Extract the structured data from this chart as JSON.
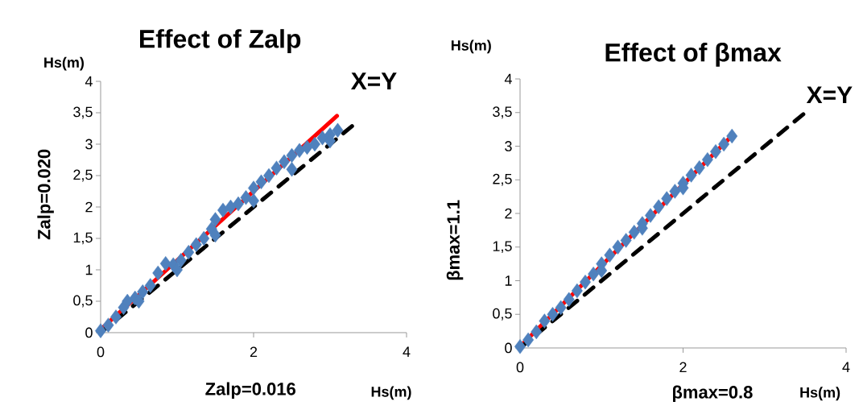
{
  "chart_data": [
    {
      "type": "scatter",
      "title": "Effect of Zalp",
      "xlabel": "Zalp=0.016",
      "ylabel": "Zalp=0.020",
      "annotations": [
        "Hs(m)",
        "Hs(m)",
        {
          "text": "X=Y",
          "x": 3.3,
          "y": 3.3
        }
      ],
      "xlim": [
        0,
        4
      ],
      "ylim": [
        0,
        4
      ],
      "xticks": [
        0,
        2,
        4
      ],
      "yticks": [
        0,
        {
          "value": 0.5,
          "label": "0,5"
        },
        1,
        {
          "value": 1.5,
          "label": "1,5"
        },
        2,
        {
          "value": 2.5,
          "label": "2,5"
        },
        3,
        {
          "value": 3.5,
          "label": "3,5"
        },
        4
      ],
      "grid": false,
      "legend": false,
      "series": [
        {
          "color": "#4f81bd",
          "marker": "diamond",
          "x": [
            0,
            0.1,
            0.2,
            0.3,
            0.35,
            0.45,
            0.5,
            0.55,
            0.65,
            0.75,
            0.85,
            0.95,
            1.0,
            1.05,
            1.15,
            1.25,
            1.35,
            1.45,
            1.5,
            1.5,
            1.6,
            1.7,
            1.8,
            1.9,
            2.0,
            2.0,
            2.1,
            2.2,
            2.3,
            2.4,
            2.5,
            2.5,
            2.6,
            2.7,
            2.8,
            2.9,
            3.0,
            3.0,
            3.1
          ],
          "values": [
            0.03,
            0.12,
            0.25,
            0.4,
            0.5,
            0.55,
            0.5,
            0.65,
            0.75,
            0.95,
            1.1,
            1.08,
            1.0,
            1.15,
            1.28,
            1.4,
            1.5,
            1.65,
            1.55,
            1.8,
            1.95,
            2.0,
            2.05,
            2.15,
            2.3,
            2.1,
            2.4,
            2.5,
            2.62,
            2.72,
            2.82,
            2.6,
            2.9,
            2.95,
            3.0,
            3.1,
            3.15,
            3.05,
            3.22
          ]
        },
        {
          "type": "line",
          "color": "#ff0000",
          "line_style": "solid",
          "x": [
            0,
            3.09
          ],
          "values": [
            0.05,
            3.45
          ]
        },
        {
          "type": "line",
          "color": "#000000",
          "line_style": "dashed",
          "x": [
            0,
            3.3
          ],
          "values": [
            0,
            3.3
          ]
        }
      ]
    },
    {
      "type": "scatter",
      "title": "Effect of βmax",
      "xlabel": "βmax=0.8",
      "ylabel": "βmax=1.1",
      "annotations": [
        "Hs(m)",
        "Hs(m)",
        {
          "text": "X=Y",
          "x": 3.5,
          "y": 3.5
        }
      ],
      "xlim": [
        0,
        4
      ],
      "ylim": [
        0,
        4
      ],
      "xticks": [
        0,
        2,
        4
      ],
      "yticks": [
        0,
        {
          "value": 0.5,
          "label": "0,5"
        },
        1,
        {
          "value": 1.5,
          "label": "1,5"
        },
        2,
        {
          "value": 2.5,
          "label": "2,5"
        },
        3,
        {
          "value": 3.5,
          "label": "3,5"
        },
        4
      ],
      "grid": false,
      "legend": false,
      "series": [
        {
          "color": "#4f81bd",
          "marker": "diamond",
          "x": [
            0,
            0.1,
            0.2,
            0.3,
            0.4,
            0.5,
            0.6,
            0.7,
            0.8,
            0.9,
            1.0,
            1.0,
            1.1,
            1.2,
            1.3,
            1.4,
            1.5,
            1.5,
            1.6,
            1.7,
            1.8,
            1.9,
            2.0,
            2.0,
            2.1,
            2.2,
            2.3,
            2.4,
            2.5,
            2.6
          ],
          "values": [
            0.02,
            0.12,
            0.24,
            0.4,
            0.5,
            0.6,
            0.72,
            0.85,
            0.98,
            1.1,
            1.25,
            1.15,
            1.38,
            1.5,
            1.6,
            1.72,
            1.85,
            1.78,
            1.97,
            2.1,
            2.22,
            2.33,
            2.45,
            2.38,
            2.57,
            2.68,
            2.8,
            2.92,
            3.03,
            3.15
          ]
        },
        {
          "type": "line",
          "color": "#ff0000",
          "line_style": "solid",
          "x": [
            0,
            2.58
          ],
          "values": [
            0.02,
            3.13
          ]
        },
        {
          "type": "line",
          "color": "#000000",
          "line_style": "dashed",
          "x": [
            0,
            3.5
          ],
          "values": [
            0,
            3.5
          ]
        }
      ]
    }
  ]
}
